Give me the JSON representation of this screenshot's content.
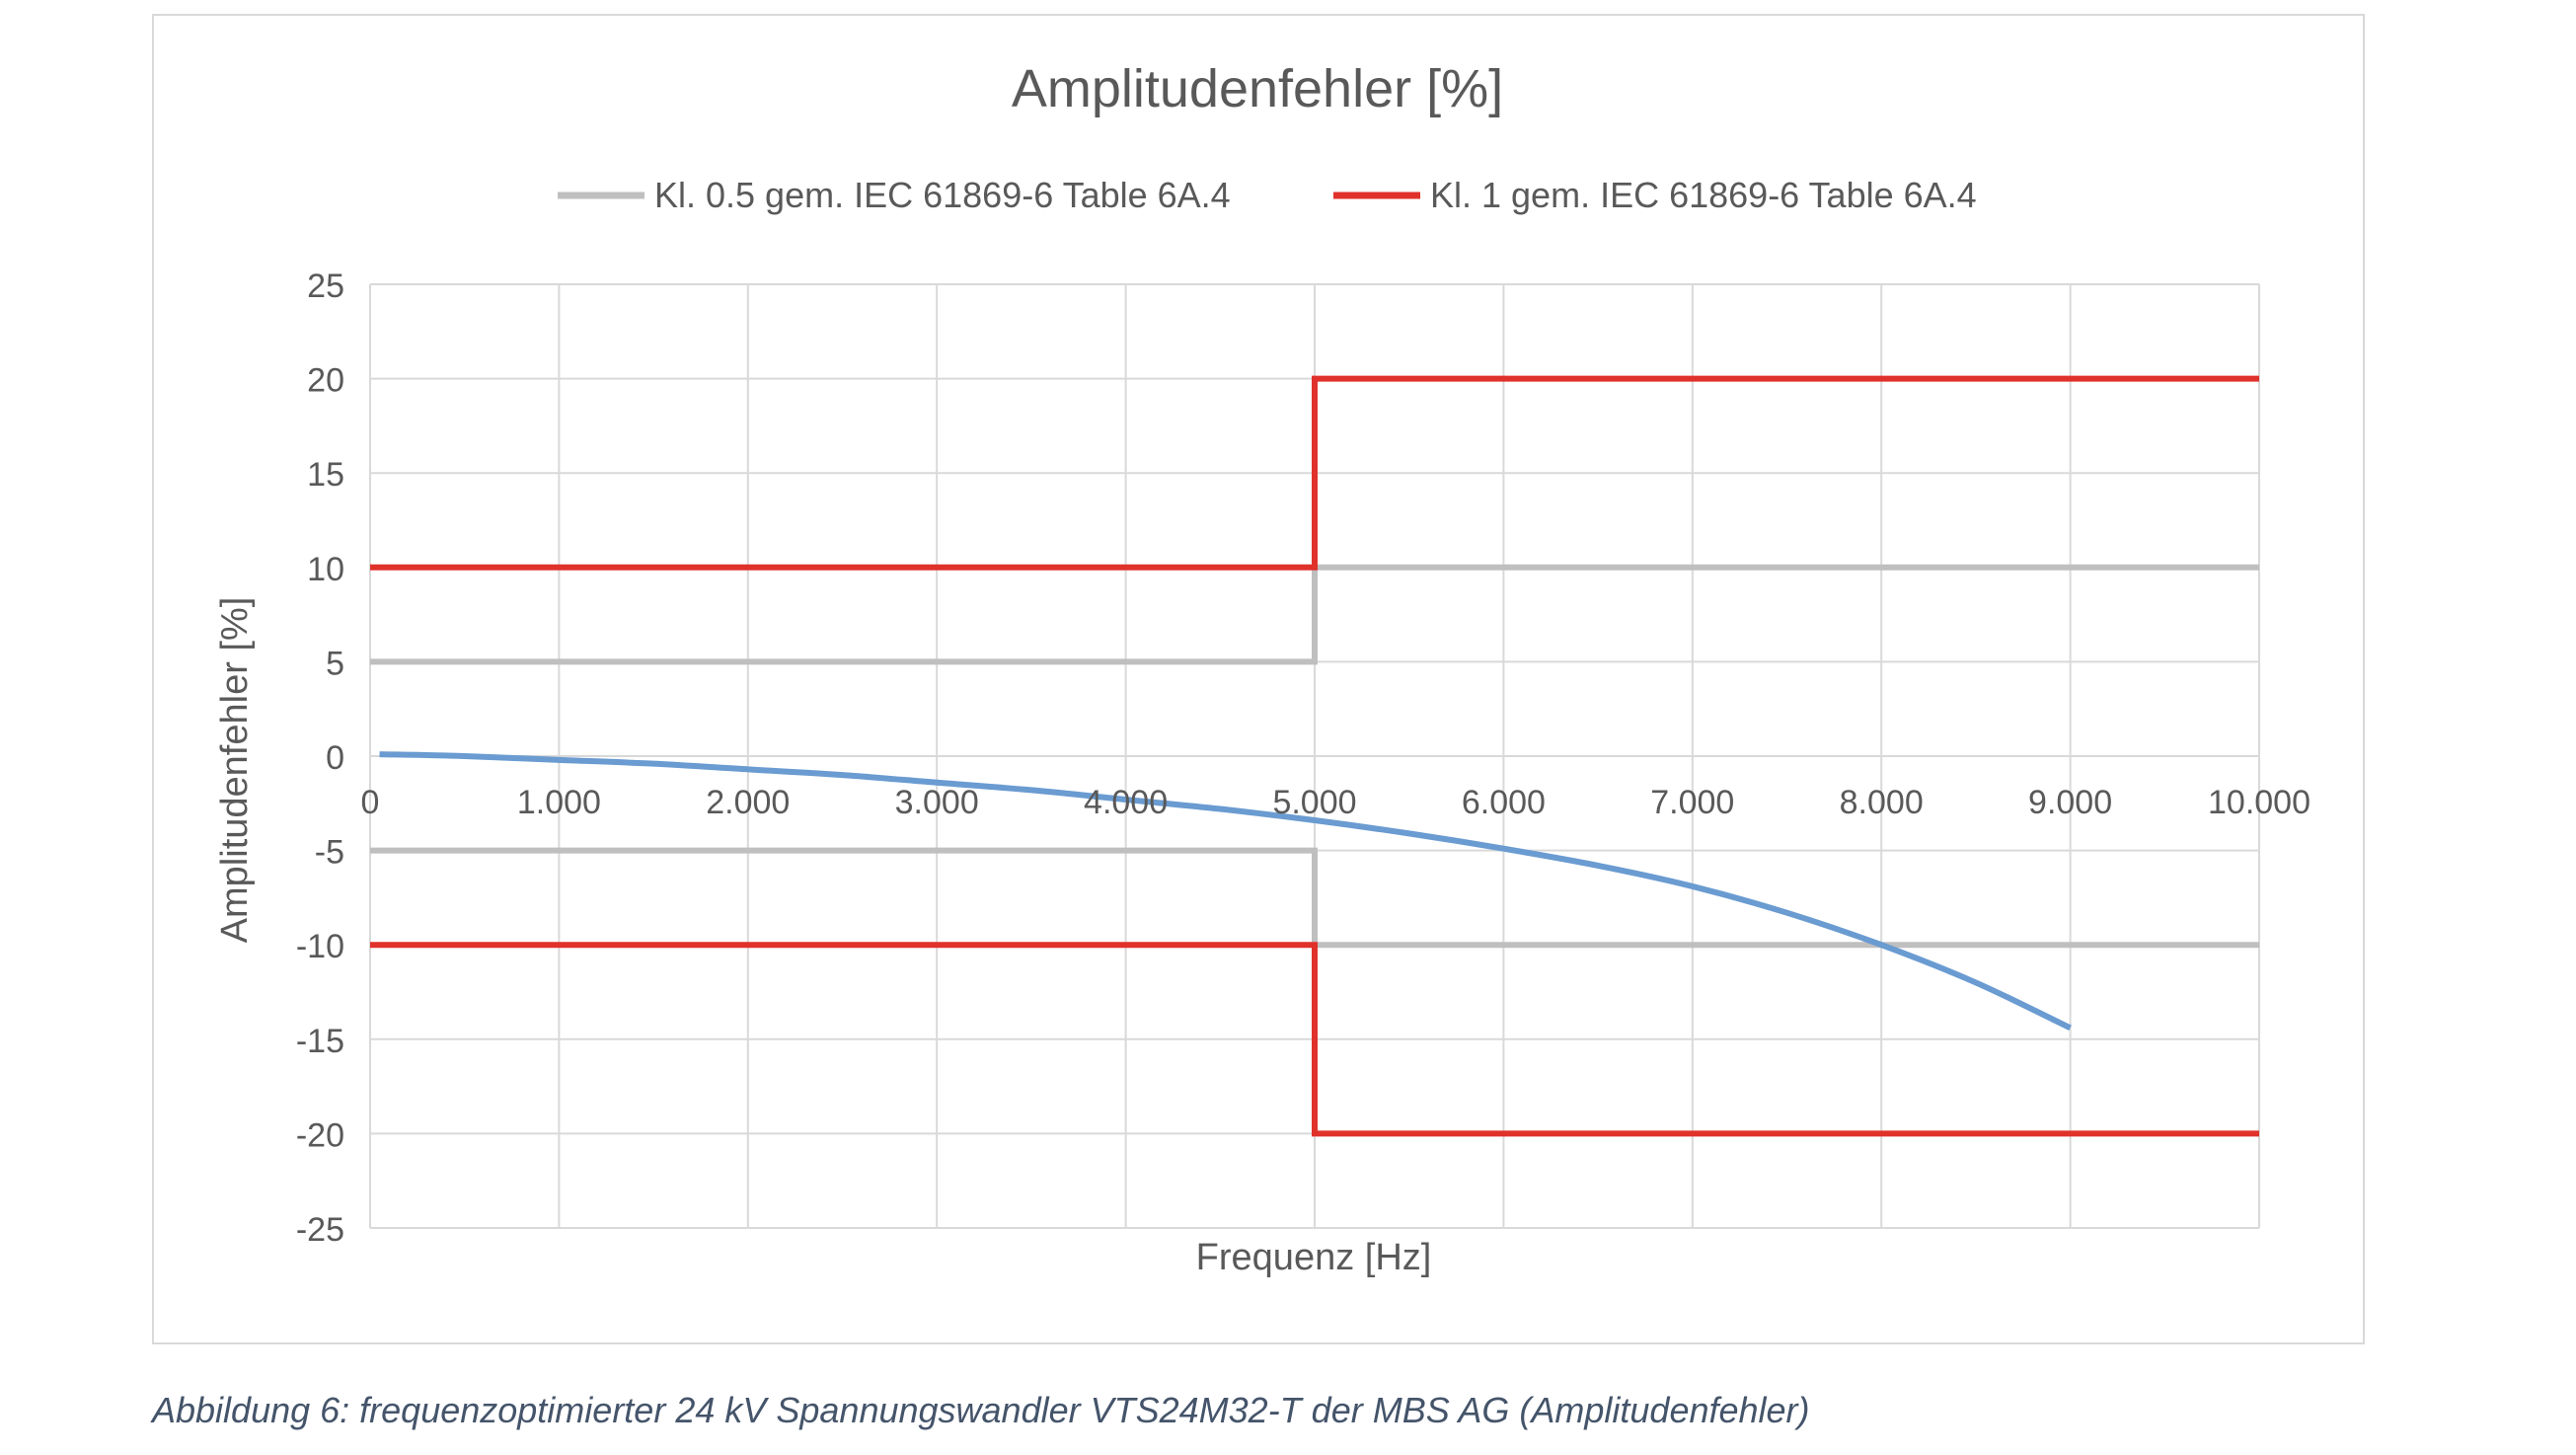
{
  "chart_data": {
    "type": "line",
    "title": "Amplitudenfehler [%]",
    "xlabel": "Frequenz [Hz]",
    "ylabel": "Amplitudenfehler [%]",
    "xlim": [
      0,
      10000
    ],
    "ylim": [
      -25,
      25
    ],
    "x_ticks": [
      0,
      1000,
      2000,
      3000,
      4000,
      5000,
      6000,
      7000,
      8000,
      9000,
      10000
    ],
    "x_tick_labels": [
      "0",
      "1.000",
      "2.000",
      "3.000",
      "4.000",
      "5.000",
      "6.000",
      "7.000",
      "8.000",
      "9.000",
      "10.000"
    ],
    "y_ticks": [
      25,
      20,
      15,
      10,
      5,
      0,
      -5,
      -10,
      -15,
      -20,
      -25
    ],
    "y_tick_labels": [
      "25",
      "20",
      "15",
      "10",
      "5",
      "0",
      "-5",
      "-10",
      "-15",
      "-20",
      "-25"
    ],
    "grid": true,
    "legend_position": "top",
    "series": [
      {
        "name": "Kl. 0.5 gem. IEC 61869-6 Table 6A.4",
        "color": "#bfbfbf",
        "legend": true,
        "x": [
          0,
          5000,
          5000,
          10000
        ],
        "y": [
          5,
          5,
          10,
          10
        ]
      },
      {
        "color": "#bfbfbf",
        "legend": false,
        "x": [
          0,
          5000,
          5000,
          10000
        ],
        "y": [
          -5,
          -5,
          -10,
          -10
        ]
      },
      {
        "name": "Kl. 1 gem. IEC 61869-6 Table 6A.4",
        "color": "#e0312b",
        "legend": true,
        "x": [
          0,
          5000,
          5000,
          10000
        ],
        "y": [
          10,
          10,
          20,
          20
        ]
      },
      {
        "color": "#e0312b",
        "legend": false,
        "x": [
          0,
          5000,
          5000,
          10000
        ],
        "y": [
          -10,
          -10,
          -20,
          -20
        ]
      },
      {
        "color": "#6a9bd1",
        "legend": false,
        "smooth": true,
        "x": [
          50,
          500,
          1000,
          1500,
          2000,
          2500,
          3000,
          3500,
          4000,
          4500,
          5000,
          5500,
          6000,
          6500,
          7000,
          7500,
          8000,
          8500,
          9000
        ],
        "y": [
          0.1,
          0.0,
          -0.2,
          -0.4,
          -0.7,
          -1.0,
          -1.4,
          -1.8,
          -2.3,
          -2.8,
          -3.4,
          -4.1,
          -4.9,
          -5.8,
          -6.9,
          -8.3,
          -10.0,
          -12.0,
          -14.4
        ]
      }
    ]
  },
  "caption": "Abbildung 6: frequenzoptimierter 24 kV Spannungswandler VTS24M32-T der MBS AG (Amplitudenfehler)"
}
